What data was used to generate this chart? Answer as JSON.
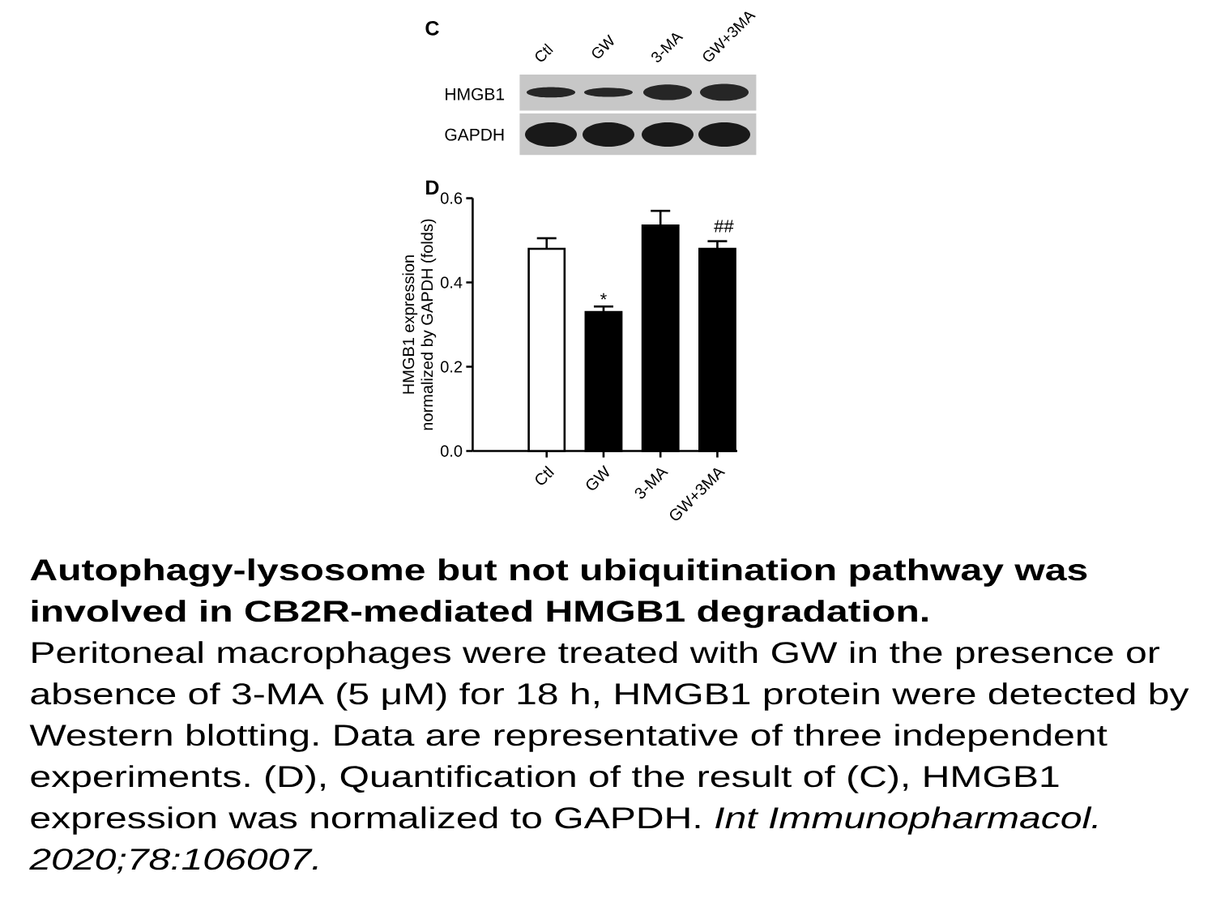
{
  "chart_data": {
    "type": "bar",
    "title": "Autophagy-lysosome but not ubiquitination pathway was involved in CB2R-mediated HMGB1 degradation.",
    "ylabel": "HMGB1 expression\nnormalized by GAPDH (folds)",
    "categories": [
      "Ctl",
      "GW",
      "3-MA",
      "GW+3MA"
    ],
    "values": [
      0.48,
      0.33,
      0.535,
      0.48
    ],
    "colors": [
      "#ffffff",
      "#000000",
      "#000000",
      "#000000"
    ],
    "errors": [
      [
        0.48,
        0.505
      ],
      [
        0.33,
        0.343
      ],
      [
        0.535,
        0.57
      ],
      [
        0.48,
        0.498
      ]
    ],
    "ylim": [
      0,
      0.6
    ],
    "yticks": [
      {
        "value": 0,
        "label": "0.0"
      },
      0.2,
      0.4,
      0.6
    ],
    "annotations": [
      {
        "text": "*",
        "x": "GW",
        "y": 0.36
      },
      "##",
      "C",
      "D",
      "HMGB1",
      "GAPDH",
      "Ctl",
      "GW",
      "3-MA",
      "GW+3MA",
      "Peritoneal macrophages were treated with GW in the presence or absence of 3-MA (5 μM) for 18 h, HMGB1 protein were detected by Western blotting. Data are representative of three independent experiments. (D), Quantification of the result of (C), HMGB1 expression was normalized to GAPDH.",
      "Int Immunopharmacol. 2020;78:106007."
    ]
  }
}
